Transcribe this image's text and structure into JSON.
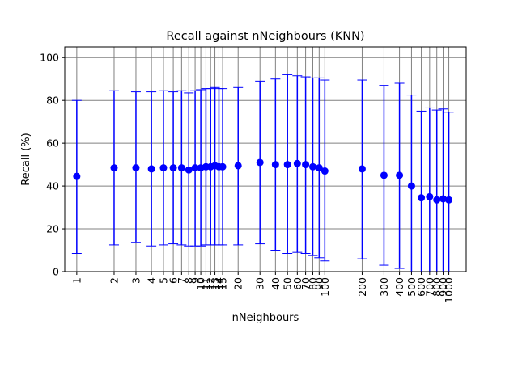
{
  "chart_data": {
    "type": "errorbar",
    "title": "Recall against nNeighbours (KNN)",
    "xlabel": "nNeighbours",
    "ylabel": "Recall (%)",
    "xscale": "log",
    "xlim": [
      0.8,
      1380
    ],
    "ylim": [
      0,
      105
    ],
    "yticks": [
      0,
      20,
      40,
      60,
      80,
      100
    ],
    "grid": true,
    "color": "#0000ff",
    "x": [
      1,
      2,
      3,
      4,
      5,
      6,
      7,
      8,
      9,
      10,
      11,
      12,
      13,
      14,
      15,
      20,
      30,
      40,
      50,
      60,
      70,
      80,
      90,
      100,
      200,
      300,
      400,
      500,
      600,
      700,
      800,
      900,
      1000
    ],
    "xtick_labels": [
      "1",
      "2",
      "3",
      "4",
      "5",
      "6",
      "7",
      "8",
      "9",
      "10",
      "11",
      "12",
      "13",
      "14",
      "15",
      "20",
      "30",
      "40",
      "50",
      "60",
      "70",
      "80",
      "90",
      "100",
      "200",
      "300",
      "400",
      "500",
      "600",
      "700",
      "800",
      "900",
      "1000"
    ],
    "y": [
      44.5,
      48.5,
      48.5,
      48.0,
      48.5,
      48.5,
      48.5,
      47.5,
      48.5,
      48.5,
      49.0,
      49.0,
      49.5,
      49.0,
      49.0,
      49.5,
      51.0,
      50.0,
      50.0,
      50.5,
      50.0,
      49.0,
      48.5,
      47.0,
      48.0,
      45.0,
      45.0,
      40.0,
      34.5,
      35.0,
      33.5,
      34.0,
      33.5
    ],
    "lower": [
      8.5,
      12.5,
      13.5,
      12.0,
      12.5,
      13.0,
      12.5,
      12.0,
      12.0,
      12.0,
      12.5,
      12.5,
      12.5,
      12.5,
      12.5,
      12.5,
      13.0,
      10.0,
      8.5,
      9.0,
      8.5,
      7.5,
      6.5,
      5.0,
      6.0,
      3.0,
      1.5,
      -2.0,
      -6.0,
      -7.0,
      -8.5,
      -8.0,
      -8.5
    ],
    "upper": [
      80.0,
      84.5,
      84.0,
      84.0,
      84.5,
      84.0,
      84.5,
      83.5,
      84.5,
      85.0,
      85.5,
      85.5,
      86.0,
      85.5,
      85.5,
      86.0,
      89.0,
      90.0,
      92.0,
      91.5,
      91.0,
      90.5,
      90.5,
      89.5,
      89.5,
      87.0,
      88.0,
      82.5,
      75.0,
      76.5,
      75.5,
      76.0,
      74.5
    ]
  }
}
